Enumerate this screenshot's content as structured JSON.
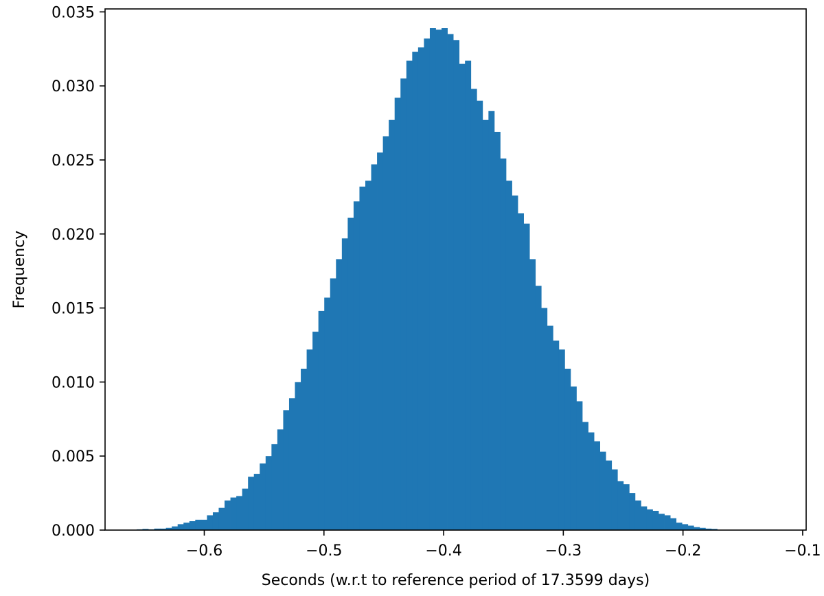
{
  "chart_data": {
    "type": "bar",
    "title": "",
    "xlabel": "Seconds (w.r.t to reference period of 17.3599 days)",
    "ylabel": "Frequency",
    "xlim": [
      -0.6829,
      -0.0971
    ],
    "ylim": [
      0,
      0.0352
    ],
    "xticks": [
      -0.6,
      -0.5,
      -0.4,
      -0.3,
      -0.2,
      -0.1
    ],
    "xtick_labels": [
      "−0.6",
      "−0.5",
      "−0.4",
      "−0.3",
      "−0.2",
      "−0.1"
    ],
    "yticks": [
      0,
      0.005,
      0.01,
      0.015,
      0.02,
      0.025,
      0.03,
      0.035
    ],
    "ytick_labels": [
      "0.000",
      "0.005",
      "0.010",
      "0.015",
      "0.020",
      "0.025",
      "0.030",
      "0.035"
    ],
    "grid": false,
    "bar_color": "#1f77b4",
    "bin_width": 0.0049,
    "x": [
      -0.6541,
      -0.6492,
      -0.6443,
      -0.6394,
      -0.6345,
      -0.6296,
      -0.6247,
      -0.6198,
      -0.6149,
      -0.61,
      -0.6051,
      -0.6002,
      -0.5953,
      -0.5904,
      -0.5855,
      -0.5806,
      -0.5757,
      -0.5708,
      -0.5659,
      -0.561,
      -0.5561,
      -0.5512,
      -0.5463,
      -0.5414,
      -0.5365,
      -0.5316,
      -0.5267,
      -0.5218,
      -0.5169,
      -0.512,
      -0.5071,
      -0.5022,
      -0.4973,
      -0.4924,
      -0.4875,
      -0.4826,
      -0.4777,
      -0.4728,
      -0.4679,
      -0.463,
      -0.4581,
      -0.4532,
      -0.4483,
      -0.4434,
      -0.4385,
      -0.4336,
      -0.4287,
      -0.4238,
      -0.4189,
      -0.414,
      -0.4091,
      -0.4042,
      -0.3993,
      -0.3944,
      -0.3895,
      -0.3846,
      -0.3797,
      -0.3748,
      -0.3699,
      -0.365,
      -0.3601,
      -0.3552,
      -0.3503,
      -0.3454,
      -0.3405,
      -0.3356,
      -0.3307,
      -0.3258,
      -0.3209,
      -0.316,
      -0.3111,
      -0.3062,
      -0.3013,
      -0.2964,
      -0.2915,
      -0.2866,
      -0.2817,
      -0.2768,
      -0.2719,
      -0.267,
      -0.2621,
      -0.2572,
      -0.2523,
      -0.2474,
      -0.2425,
      -0.2376,
      -0.2327,
      -0.2278,
      -0.2229,
      -0.218,
      -0.2131,
      -0.2082,
      -0.2033,
      -0.1984,
      -0.1935,
      -0.1886,
      -0.1837,
      -0.1788,
      -0.1739
    ],
    "values": [
      5e-05,
      8e-05,
      5e-05,
      0.0001,
      0.0001,
      0.00015,
      0.00025,
      0.0004,
      0.0005,
      0.0006,
      0.0007,
      0.0007,
      0.001,
      0.0012,
      0.0015,
      0.002,
      0.0022,
      0.0023,
      0.0028,
      0.0036,
      0.0038,
      0.0045,
      0.005,
      0.0058,
      0.0068,
      0.0081,
      0.0089,
      0.01,
      0.0109,
      0.0122,
      0.0134,
      0.0148,
      0.0157,
      0.017,
      0.0183,
      0.0197,
      0.0211,
      0.0222,
      0.0232,
      0.0236,
      0.0247,
      0.0255,
      0.0266,
      0.0277,
      0.0292,
      0.0305,
      0.0317,
      0.0323,
      0.0326,
      0.0332,
      0.0339,
      0.0338,
      0.0339,
      0.0335,
      0.0331,
      0.0315,
      0.0317,
      0.0298,
      0.029,
      0.0277,
      0.0283,
      0.0269,
      0.0251,
      0.0236,
      0.0226,
      0.0214,
      0.0207,
      0.0183,
      0.0165,
      0.015,
      0.0138,
      0.0128,
      0.0122,
      0.0109,
      0.0097,
      0.0087,
      0.0073,
      0.0066,
      0.006,
      0.0053,
      0.0047,
      0.0041,
      0.0033,
      0.0031,
      0.0025,
      0.002,
      0.0016,
      0.0014,
      0.0013,
      0.0011,
      0.001,
      0.0008,
      0.0005,
      0.0004,
      0.0003,
      0.0002,
      0.00015,
      0.0001,
      8e-05
    ]
  }
}
